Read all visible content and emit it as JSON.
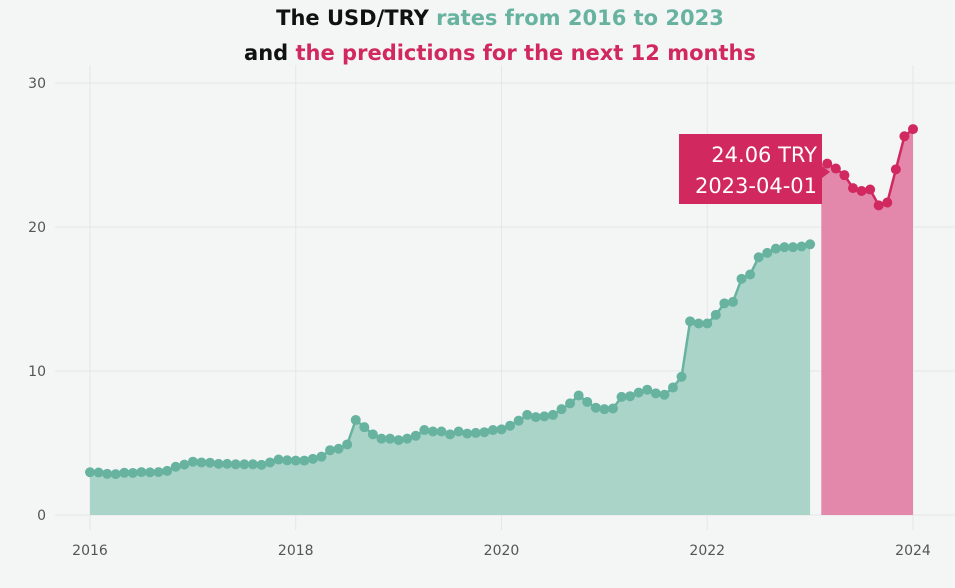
{
  "title": {
    "line1_prefix": "The USD/TRY ",
    "line1_highlight": "rates from 2016 to 2023",
    "line2_prefix": "and ",
    "line2_highlight": "the predictions for the next 12 months"
  },
  "colors": {
    "historical": "#68b3a0",
    "historical_fill": "#abd4c9",
    "prediction": "#d0285f",
    "prediction_fill": "#e388aa",
    "grid": "#e4e7e7"
  },
  "tooltip": {
    "value": "24.06 TRY",
    "date": "2023-04-01"
  },
  "chart_data": {
    "type": "area",
    "xlim": [
      "2016-01",
      "2024-01"
    ],
    "ylim": [
      0,
      30
    ],
    "x_ticks": [
      "2016",
      "2018",
      "2020",
      "2022",
      "2024"
    ],
    "y_ticks": [
      "0",
      "10",
      "20",
      "30"
    ],
    "grid": true,
    "series": [
      {
        "start": "2016-01",
        "values": [
          2.97,
          2.95,
          2.86,
          2.84,
          2.93,
          2.92,
          2.98,
          2.96,
          2.98,
          3.06,
          3.35,
          3.5,
          3.7,
          3.65,
          3.63,
          3.55,
          3.55,
          3.52,
          3.52,
          3.52,
          3.48,
          3.65,
          3.85,
          3.8,
          3.78,
          3.78,
          3.9,
          4.05,
          4.5,
          4.6,
          4.9,
          6.6,
          6.1,
          5.6,
          5.3,
          5.3,
          5.2,
          5.3,
          5.5,
          5.9,
          5.8,
          5.8,
          5.6,
          5.8,
          5.65,
          5.7,
          5.75,
          5.9,
          5.95,
          6.2,
          6.55,
          6.95,
          6.8,
          6.85,
          6.95,
          7.35,
          7.75,
          8.3,
          7.85,
          7.45,
          7.35,
          7.4,
          8.2,
          8.25,
          8.5,
          8.7,
          8.45,
          8.35,
          8.85,
          9.6,
          13.45,
          13.3,
          13.3,
          13.9,
          14.7,
          14.8,
          16.4,
          16.7,
          17.9,
          18.2,
          18.5,
          18.6,
          18.6,
          18.65,
          18.8
        ]
      },
      {
        "start": "2023-03",
        "values": [
          24.4,
          24.06,
          23.6,
          22.7,
          22.5,
          22.6,
          21.5,
          21.7,
          24.0,
          26.3,
          26.8
        ]
      }
    ]
  }
}
